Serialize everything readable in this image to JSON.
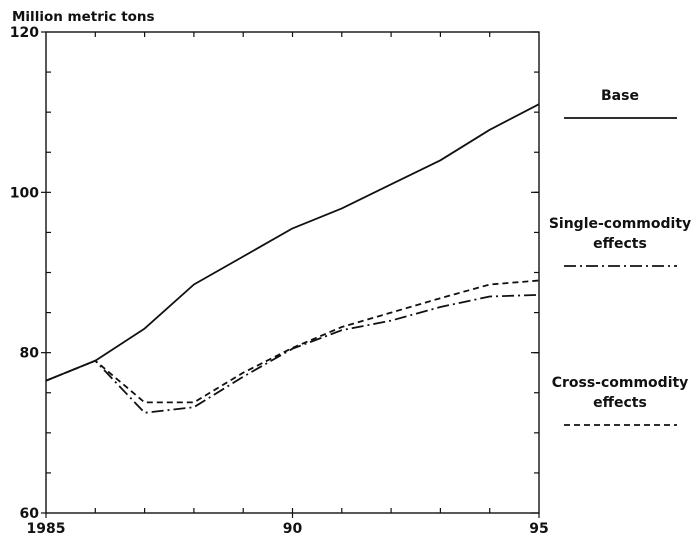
{
  "chart_data": {
    "type": "line",
    "ylabel": "Million metric tons",
    "xlim": [
      1985,
      1995
    ],
    "ylim": [
      60,
      120
    ],
    "x_ticks": [
      {
        "value": 1985,
        "label": "1985"
      },
      {
        "value": 1990,
        "label": "90"
      },
      {
        "value": 1995,
        "label": "95"
      }
    ],
    "y_ticks": [
      {
        "value": 60,
        "label": "60"
      },
      {
        "value": 80,
        "label": "80"
      },
      {
        "value": 100,
        "label": "100"
      },
      {
        "value": 120,
        "label": "120"
      }
    ],
    "minor_x_step": 1,
    "minor_y_step": 5,
    "x": [
      1985,
      1986,
      1987,
      1988,
      1989,
      1990,
      1991,
      1992,
      1993,
      1994,
      1995
    ],
    "series": [
      {
        "name": "Base",
        "style": "solid",
        "values": [
          76.5,
          79,
          83,
          88.5,
          92,
          95.5,
          98,
          101,
          104,
          107.8,
          111
        ]
      },
      {
        "name": "Single-commodity effects",
        "style": "dashdot",
        "values": [
          76.5,
          79,
          72.5,
          73.2,
          77,
          80.5,
          82.8,
          84,
          85.7,
          87,
          87.2
        ]
      },
      {
        "name": "Cross-commodity effects",
        "style": "dashed",
        "values": [
          76.5,
          79,
          73.8,
          73.8,
          77.5,
          80.6,
          83.2,
          85,
          86.8,
          88.5,
          89
        ]
      }
    ],
    "legend": {
      "placement": "right",
      "entries": [
        {
          "lines": [
            "Base"
          ],
          "style": "solid"
        },
        {
          "lines": [
            "Single-commodity",
            "effects"
          ],
          "style": "dashdot"
        },
        {
          "lines": [
            "Cross-commodity",
            "effects"
          ],
          "style": "dashed"
        }
      ]
    }
  }
}
